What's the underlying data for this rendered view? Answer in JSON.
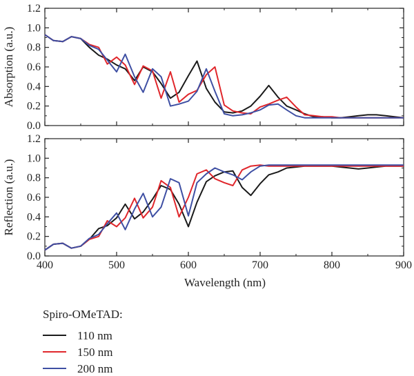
{
  "legend": {
    "title": "Spiro-OMeTAD:",
    "entries": [
      {
        "label": "110 nm",
        "color": "#1a1a1a"
      },
      {
        "label": "150 nm",
        "color": "#e0262b"
      },
      {
        "label": "200 nm",
        "color": "#3e4fa3"
      }
    ]
  },
  "chart_data": [
    {
      "type": "line",
      "title": "",
      "xlabel": "",
      "ylabel": "Absorption (a.u.)",
      "xlim": [
        400,
        900
      ],
      "ylim": [
        0,
        1.2
      ],
      "y_ticks": [
        "0.0",
        "0.2",
        "0.4",
        "0.6",
        "0.8",
        "1.0",
        "1.2"
      ],
      "x_ticks": [
        400,
        500,
        600,
        700,
        800,
        900
      ],
      "grid": false,
      "series": [
        {
          "name": "110 nm",
          "color": "#1a1a1a",
          "x": [
            400,
            412,
            425,
            437,
            450,
            462,
            475,
            487,
            500,
            512,
            525,
            537,
            550,
            562,
            575,
            587,
            600,
            612,
            625,
            637,
            650,
            662,
            675,
            687,
            700,
            712,
            725,
            737,
            750,
            762,
            775,
            787,
            800,
            812,
            825,
            837,
            850,
            862,
            875,
            887,
            900
          ],
          "y": [
            0.93,
            0.87,
            0.86,
            0.91,
            0.89,
            0.8,
            0.72,
            0.68,
            0.62,
            0.58,
            0.46,
            0.6,
            0.55,
            0.43,
            0.28,
            0.34,
            0.51,
            0.66,
            0.38,
            0.24,
            0.14,
            0.13,
            0.15,
            0.2,
            0.3,
            0.41,
            0.29,
            0.2,
            0.16,
            0.12,
            0.09,
            0.09,
            0.08,
            0.08,
            0.09,
            0.1,
            0.11,
            0.11,
            0.1,
            0.09,
            0.08
          ]
        },
        {
          "name": "150 nm",
          "color": "#e0262b",
          "x": [
            400,
            412,
            425,
            437,
            450,
            462,
            475,
            487,
            500,
            512,
            525,
            537,
            550,
            562,
            575,
            587,
            600,
            612,
            625,
            637,
            650,
            662,
            675,
            687,
            700,
            712,
            725,
            737,
            750,
            762,
            775,
            787,
            800,
            812,
            825,
            837,
            850,
            862,
            875,
            887,
            900
          ],
          "y": [
            0.93,
            0.87,
            0.86,
            0.91,
            0.89,
            0.83,
            0.8,
            0.63,
            0.7,
            0.62,
            0.42,
            0.61,
            0.56,
            0.28,
            0.55,
            0.24,
            0.32,
            0.36,
            0.52,
            0.6,
            0.21,
            0.15,
            0.13,
            0.12,
            0.19,
            0.22,
            0.26,
            0.29,
            0.19,
            0.11,
            0.1,
            0.09,
            0.09,
            0.08,
            0.08,
            0.08,
            0.08,
            0.08,
            0.08,
            0.08,
            0.08
          ]
        },
        {
          "name": "200 nm",
          "color": "#3e4fa3",
          "x": [
            400,
            412,
            425,
            437,
            450,
            462,
            475,
            487,
            500,
            512,
            525,
            537,
            550,
            562,
            575,
            587,
            600,
            612,
            625,
            637,
            650,
            662,
            675,
            687,
            700,
            712,
            725,
            737,
            750,
            762,
            775,
            787,
            800,
            812,
            825,
            837,
            850,
            862,
            875,
            887,
            900
          ],
          "y": [
            0.93,
            0.87,
            0.86,
            0.91,
            0.89,
            0.82,
            0.78,
            0.67,
            0.55,
            0.73,
            0.5,
            0.34,
            0.58,
            0.5,
            0.2,
            0.22,
            0.25,
            0.35,
            0.58,
            0.35,
            0.12,
            0.1,
            0.11,
            0.13,
            0.16,
            0.21,
            0.22,
            0.16,
            0.1,
            0.08,
            0.08,
            0.08,
            0.08,
            0.08,
            0.08,
            0.08,
            0.08,
            0.08,
            0.08,
            0.08,
            0.08
          ]
        }
      ]
    },
    {
      "type": "line",
      "title": "",
      "xlabel": "Wavelength (nm)",
      "ylabel": "Reflection (a.u.)",
      "xlim": [
        400,
        900
      ],
      "ylim": [
        0,
        1.2
      ],
      "y_ticks": [
        "0.0",
        "0.2",
        "0.4",
        "0.6",
        "0.8",
        "1.0",
        "1.2"
      ],
      "x_ticks": [
        400,
        500,
        600,
        700,
        800,
        900
      ],
      "grid": false,
      "series": [
        {
          "name": "110 nm",
          "color": "#1a1a1a",
          "x": [
            400,
            412,
            425,
            437,
            450,
            462,
            475,
            487,
            500,
            512,
            525,
            537,
            550,
            562,
            575,
            587,
            600,
            612,
            625,
            637,
            650,
            662,
            675,
            687,
            700,
            712,
            725,
            737,
            750,
            762,
            775,
            787,
            800,
            812,
            825,
            837,
            850,
            862,
            875,
            887,
            900
          ],
          "y": [
            0.06,
            0.12,
            0.13,
            0.08,
            0.1,
            0.17,
            0.28,
            0.31,
            0.39,
            0.53,
            0.38,
            0.45,
            0.58,
            0.72,
            0.68,
            0.53,
            0.3,
            0.55,
            0.76,
            0.82,
            0.86,
            0.87,
            0.7,
            0.62,
            0.74,
            0.83,
            0.86,
            0.9,
            0.91,
            0.92,
            0.92,
            0.92,
            0.92,
            0.91,
            0.9,
            0.89,
            0.9,
            0.91,
            0.92,
            0.92,
            0.92
          ]
        },
        {
          "name": "150 nm",
          "color": "#e0262b",
          "x": [
            400,
            412,
            425,
            437,
            450,
            462,
            475,
            487,
            500,
            512,
            525,
            537,
            550,
            562,
            575,
            587,
            600,
            612,
            625,
            637,
            650,
            662,
            675,
            687,
            700,
            712,
            725,
            737,
            750,
            762,
            775,
            787,
            800,
            812,
            825,
            837,
            850,
            862,
            875,
            887,
            900
          ],
          "y": [
            0.06,
            0.12,
            0.13,
            0.08,
            0.1,
            0.17,
            0.2,
            0.36,
            0.3,
            0.39,
            0.59,
            0.39,
            0.5,
            0.77,
            0.7,
            0.4,
            0.6,
            0.84,
            0.88,
            0.79,
            0.75,
            0.72,
            0.88,
            0.92,
            0.93,
            0.92,
            0.92,
            0.92,
            0.92,
            0.92,
            0.92,
            0.92,
            0.92,
            0.92,
            0.92,
            0.92,
            0.92,
            0.92,
            0.92,
            0.92,
            0.92
          ]
        },
        {
          "name": "200 nm",
          "color": "#3e4fa3",
          "x": [
            400,
            412,
            425,
            437,
            450,
            462,
            475,
            487,
            500,
            512,
            525,
            537,
            550,
            562,
            575,
            587,
            600,
            612,
            625,
            637,
            650,
            662,
            675,
            687,
            700,
            712,
            725,
            737,
            750,
            762,
            775,
            787,
            800,
            812,
            825,
            837,
            850,
            862,
            875,
            887,
            900
          ],
          "y": [
            0.06,
            0.12,
            0.13,
            0.08,
            0.1,
            0.18,
            0.22,
            0.33,
            0.44,
            0.27,
            0.48,
            0.64,
            0.4,
            0.5,
            0.79,
            0.75,
            0.41,
            0.75,
            0.84,
            0.9,
            0.86,
            0.83,
            0.78,
            0.86,
            0.92,
            0.93,
            0.93,
            0.93,
            0.93,
            0.93,
            0.93,
            0.93,
            0.93,
            0.93,
            0.93,
            0.93,
            0.93,
            0.93,
            0.93,
            0.93,
            0.93
          ]
        }
      ]
    }
  ]
}
